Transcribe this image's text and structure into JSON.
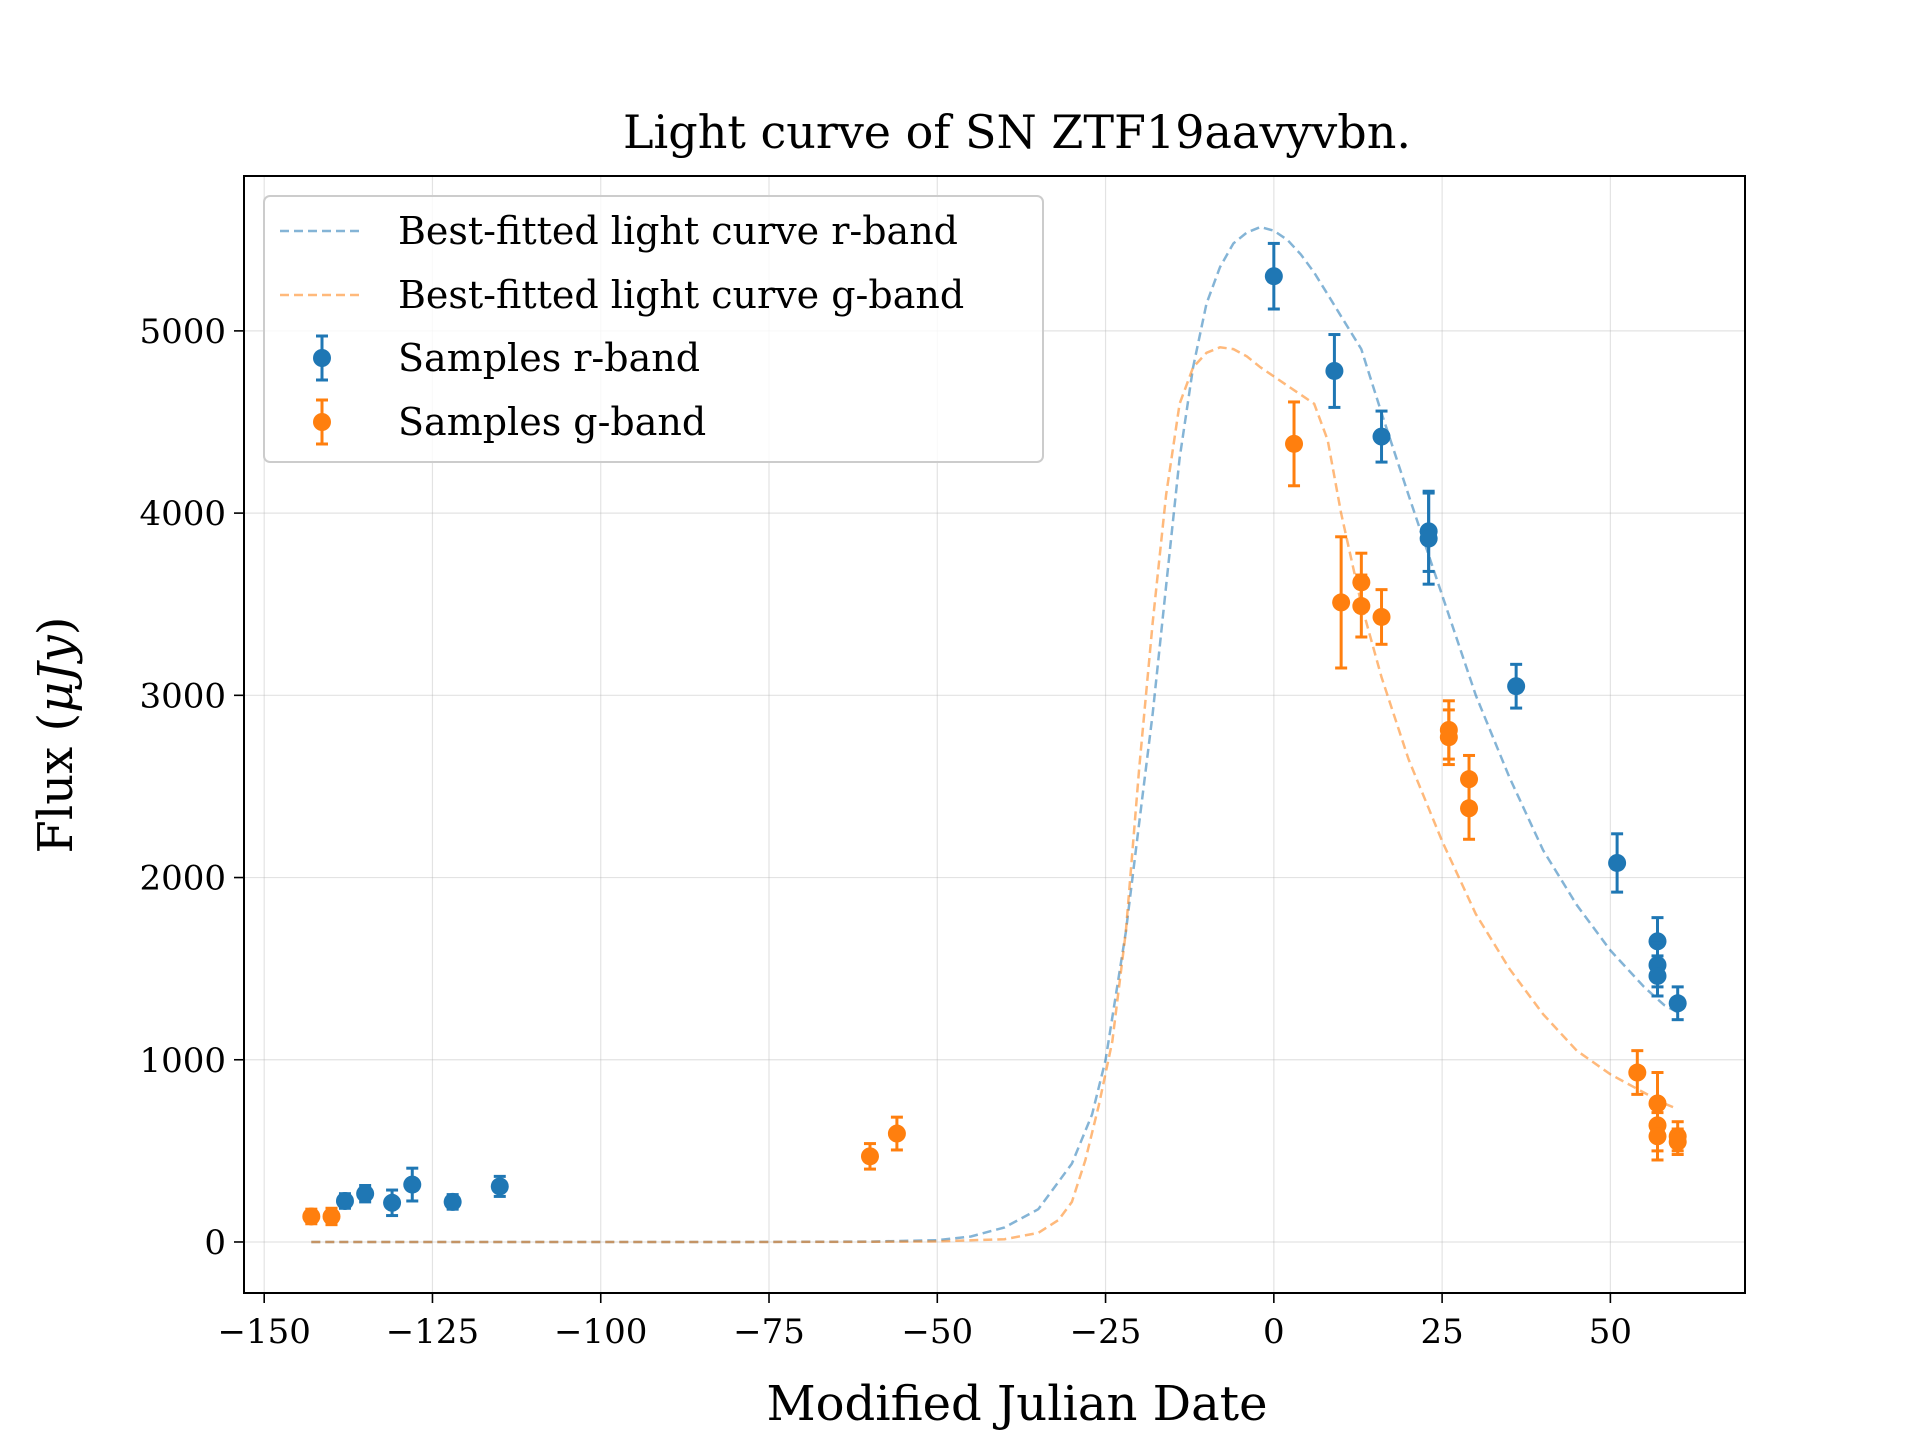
{
  "chart_data": {
    "type": "scatter",
    "title": "Light curve of SN ZTF19aavyvbn.",
    "xlabel": "Modified Julian Date",
    "ylabel_prefix": "Flux (",
    "ylabel_unit": "μJy",
    "ylabel_suffix": ")",
    "xlim": [
      -153,
      70
    ],
    "ylim": [
      -280,
      5850
    ],
    "xticks": [
      -150,
      -125,
      -100,
      -75,
      -50,
      -25,
      0,
      25,
      50
    ],
    "xtick_labels": [
      "−150",
      "−125",
      "−100",
      "−75",
      "−50",
      "−25",
      "0",
      "25",
      "50"
    ],
    "yticks": [
      0,
      1000,
      2000,
      3000,
      4000,
      5000
    ],
    "ytick_labels": [
      "0",
      "1000",
      "2000",
      "3000",
      "4000",
      "5000"
    ],
    "grid": true,
    "legend_position": "top-left",
    "colors": {
      "r": "#1f77b4",
      "g": "#ff7f0e"
    },
    "series": [
      {
        "name": "Best-fitted light curve r-band",
        "kind": "dashed-line",
        "color": "#1f77b4",
        "x": [
          -143,
          -120,
          -100,
          -80,
          -60,
          -50,
          -45,
          -40,
          -35,
          -30,
          -27,
          -25,
          -22,
          -20,
          -18,
          -16,
          -14,
          -12,
          -10,
          -8,
          -6,
          -4,
          -2,
          0,
          2,
          4,
          6,
          8,
          10,
          13,
          16,
          20,
          25,
          30,
          35,
          40,
          45,
          50,
          55,
          58,
          60
        ],
        "y": [
          0,
          0,
          0,
          0,
          2,
          10,
          30,
          80,
          180,
          430,
          700,
          1000,
          1700,
          2300,
          2900,
          3600,
          4300,
          4800,
          5150,
          5350,
          5480,
          5540,
          5570,
          5550,
          5500,
          5420,
          5320,
          5200,
          5080,
          4900,
          4550,
          4100,
          3550,
          3000,
          2550,
          2150,
          1850,
          1600,
          1400,
          1300,
          1260
        ]
      },
      {
        "name": "Best-fitted light curve g-band",
        "kind": "dashed-line",
        "color": "#ff7f0e",
        "x": [
          -143,
          -120,
          -100,
          -80,
          -60,
          -50,
          -40,
          -35,
          -32,
          -30,
          -28,
          -26,
          -24,
          -22,
          -20,
          -18,
          -16,
          -14,
          -12,
          -10,
          -8,
          -6,
          -4,
          -2,
          0,
          2,
          4,
          6,
          8,
          10,
          13,
          16,
          20,
          25,
          30,
          35,
          40,
          45,
          50,
          55,
          58,
          60
        ],
        "y": [
          0,
          0,
          0,
          0,
          1,
          3,
          15,
          50,
          120,
          220,
          450,
          750,
          1100,
          1700,
          2600,
          3400,
          4100,
          4600,
          4800,
          4880,
          4910,
          4900,
          4860,
          4800,
          4750,
          4700,
          4650,
          4600,
          4400,
          4000,
          3500,
          3100,
          2650,
          2200,
          1800,
          1500,
          1250,
          1050,
          920,
          820,
          760,
          730
        ]
      },
      {
        "name": "Samples r-band",
        "kind": "errorbar",
        "color": "#1f77b4",
        "points": [
          {
            "x": -138,
            "y": 225,
            "err": 40
          },
          {
            "x": -135,
            "y": 265,
            "err": 45
          },
          {
            "x": -131,
            "y": 215,
            "err": 70
          },
          {
            "x": -128,
            "y": 315,
            "err": 90
          },
          {
            "x": -122,
            "y": 220,
            "err": 40
          },
          {
            "x": -115,
            "y": 305,
            "err": 55
          },
          {
            "x": 0,
            "y": 5300,
            "err": 180
          },
          {
            "x": 9,
            "y": 4780,
            "err": 200
          },
          {
            "x": 16,
            "y": 4420,
            "err": 140
          },
          {
            "x": 23,
            "y": 3900,
            "err": 220
          },
          {
            "x": 23,
            "y": 3860,
            "err": 250
          },
          {
            "x": 36,
            "y": 3050,
            "err": 120
          },
          {
            "x": 51,
            "y": 2080,
            "err": 160
          },
          {
            "x": 57,
            "y": 1650,
            "err": 130
          },
          {
            "x": 57,
            "y": 1520,
            "err": 120
          },
          {
            "x": 57,
            "y": 1460,
            "err": 110
          },
          {
            "x": 60,
            "y": 1310,
            "err": 90
          }
        ]
      },
      {
        "name": "Samples g-band",
        "kind": "errorbar",
        "color": "#ff7f0e",
        "points": [
          {
            "x": -143,
            "y": 140,
            "err": 40
          },
          {
            "x": -140,
            "y": 140,
            "err": 45
          },
          {
            "x": -60,
            "y": 470,
            "err": 70
          },
          {
            "x": -56,
            "y": 595,
            "err": 90
          },
          {
            "x": 3,
            "y": 4380,
            "err": 230
          },
          {
            "x": 10,
            "y": 3510,
            "err": 360
          },
          {
            "x": 13,
            "y": 3620,
            "err": 160
          },
          {
            "x": 13,
            "y": 3490,
            "err": 170
          },
          {
            "x": 16,
            "y": 3430,
            "err": 150
          },
          {
            "x": 26,
            "y": 2810,
            "err": 160
          },
          {
            "x": 26,
            "y": 2770,
            "err": 150
          },
          {
            "x": 29,
            "y": 2540,
            "err": 130
          },
          {
            "x": 29,
            "y": 2380,
            "err": 170
          },
          {
            "x": 54,
            "y": 930,
            "err": 120
          },
          {
            "x": 57,
            "y": 760,
            "err": 170
          },
          {
            "x": 57,
            "y": 640,
            "err": 140
          },
          {
            "x": 57,
            "y": 580,
            "err": 130
          },
          {
            "x": 60,
            "y": 580,
            "err": 80
          },
          {
            "x": 60,
            "y": 550,
            "err": 70
          }
        ]
      }
    ]
  }
}
